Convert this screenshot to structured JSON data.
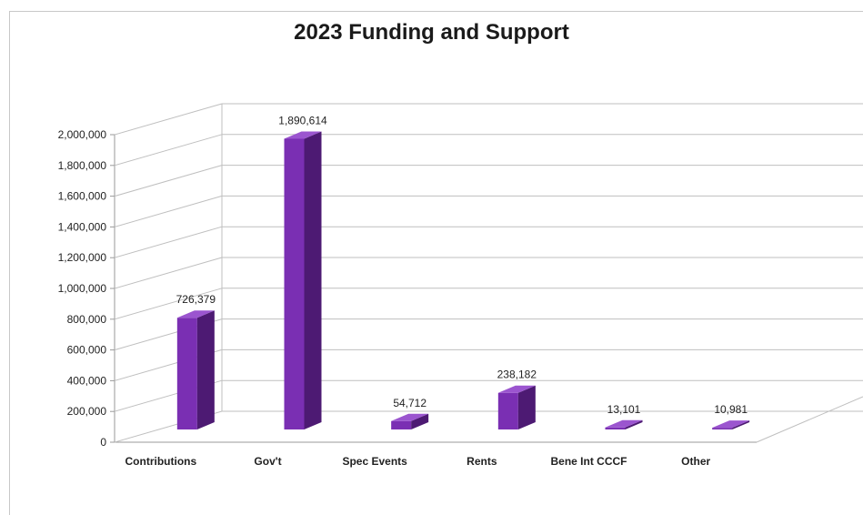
{
  "chart_data": {
    "type": "bar",
    "title": "2023 Funding and Support",
    "categories": [
      "Contributions",
      "Gov't",
      "Spec Events",
      "Rents",
      "Bene Int CCCF",
      "Other"
    ],
    "values": [
      726379,
      1890614,
      54712,
      238182,
      13101,
      10981
    ],
    "data_labels": [
      "726,379",
      "1,890,614",
      "54,712",
      "238,182",
      "13,101",
      "10,981"
    ],
    "ylim": [
      0,
      2000000
    ],
    "yticks": [
      0,
      200000,
      400000,
      600000,
      800000,
      1000000,
      1200000,
      1400000,
      1600000,
      1800000,
      2000000
    ],
    "ytick_labels": [
      "0",
      "200,000",
      "400,000",
      "600,000",
      "800,000",
      "1,000,000",
      "1,200,000",
      "1,400,000",
      "1,600,000",
      "1,800,000",
      "2,000,000"
    ],
    "grid": true,
    "style": "3d-column",
    "colors": {
      "bar_front": "#7a2fb3",
      "bar_side": "#4d1a73",
      "bar_top": "#9b55cf",
      "grid": "#bfbfbf"
    }
  }
}
